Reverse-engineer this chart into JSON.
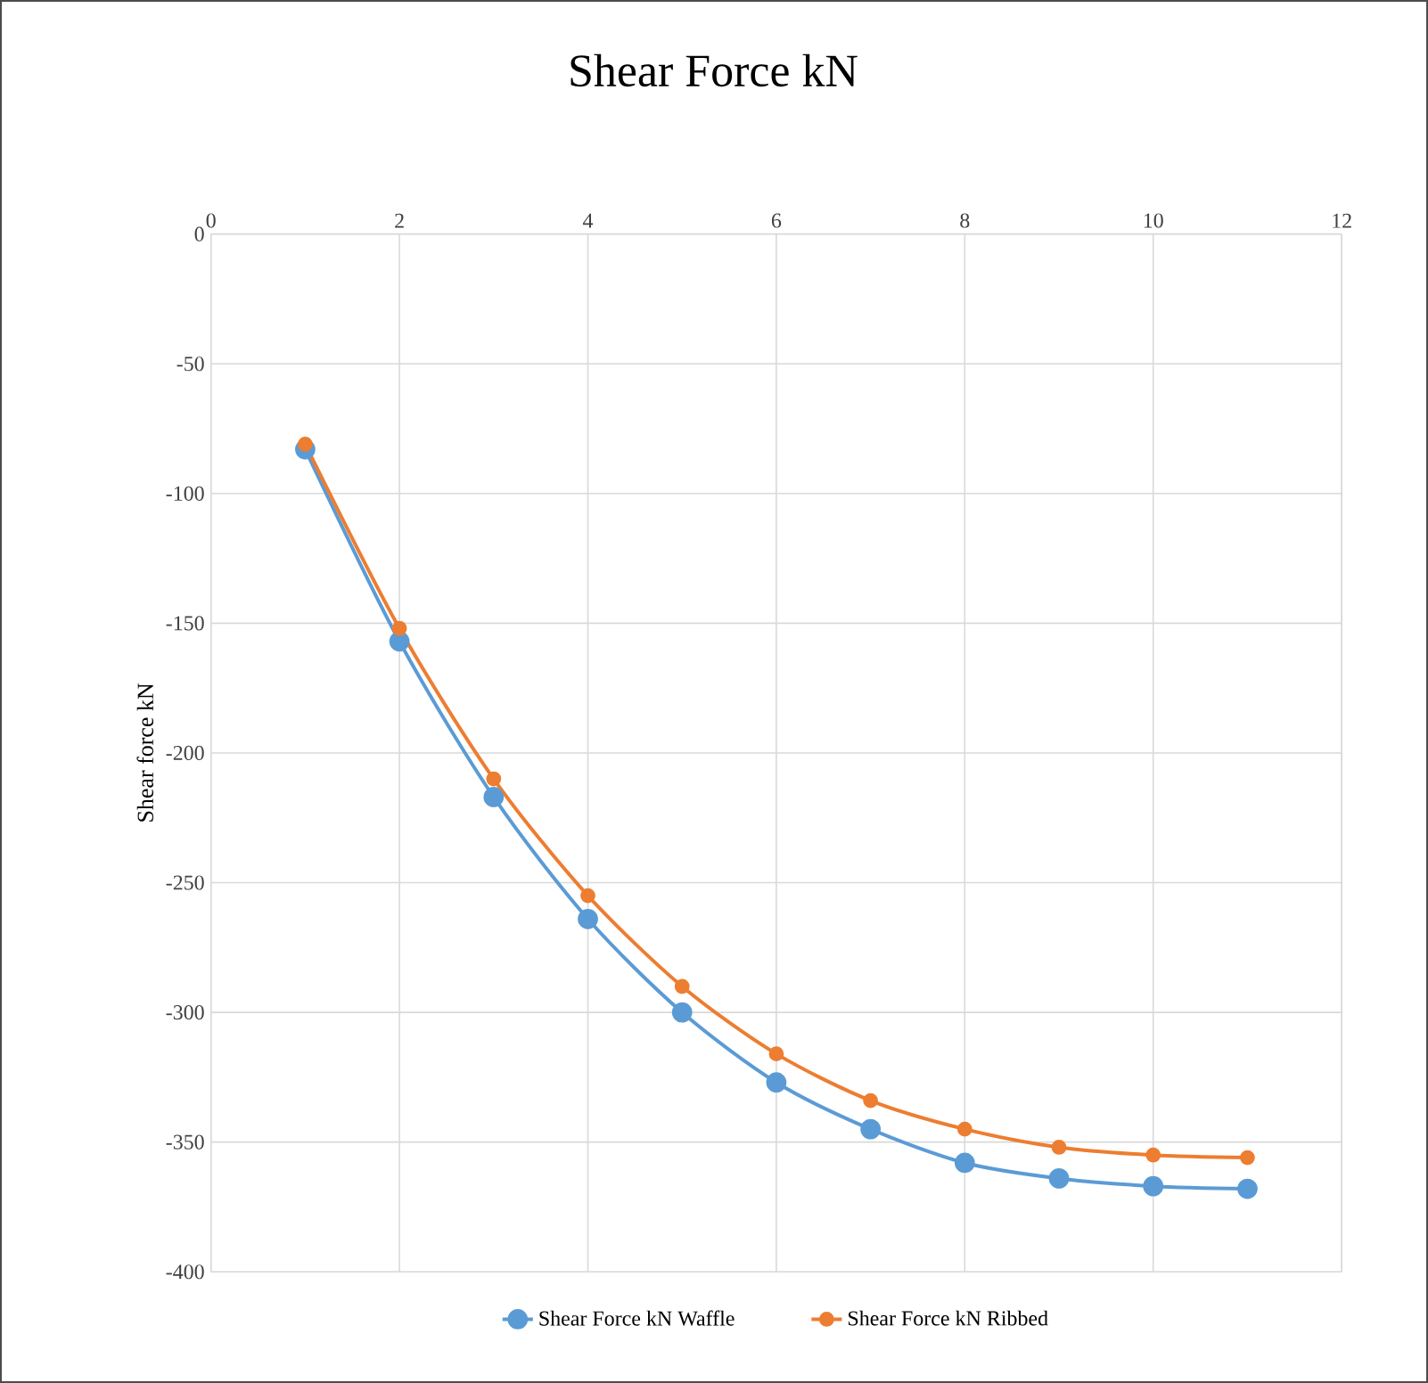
{
  "chart_data": {
    "type": "line",
    "title": "Shear Force kN",
    "ylabel": "Shear force kN",
    "x": [
      1,
      2,
      3,
      4,
      5,
      6,
      7,
      8,
      9,
      10,
      11
    ],
    "series": [
      {
        "name": "Shear Force kN Waffle",
        "color": "#5b9bd5",
        "values": [
          -83,
          -157,
          -217,
          -264,
          -300,
          -327,
          -345,
          -358,
          -364,
          -367,
          -368
        ]
      },
      {
        "name": "Shear Force kN Ribbed",
        "color": "#ed7d31",
        "values": [
          -81,
          -152,
          -210,
          -255,
          -290,
          -316,
          -334,
          -345,
          -352,
          -355,
          -356
        ]
      }
    ],
    "xlim": [
      0,
      12
    ],
    "xticks": [
      0,
      2,
      4,
      6,
      8,
      10,
      12
    ],
    "ylim": [
      -400,
      0
    ],
    "yticks": [
      -400,
      -350,
      -300,
      -250,
      -200,
      -150,
      -100,
      -50,
      0
    ],
    "grid": true,
    "legend": "bottom",
    "marker": "circle",
    "line_style": "solid"
  }
}
